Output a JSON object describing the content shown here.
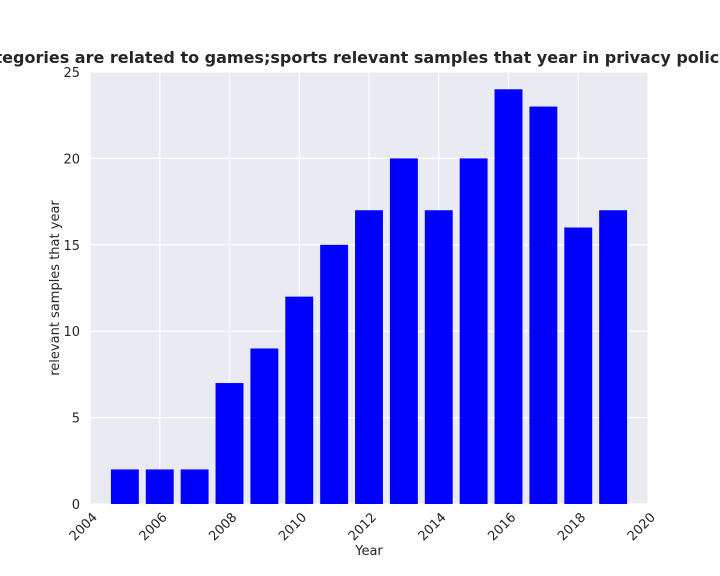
{
  "chart_data": {
    "type": "bar",
    "title": "when categories are related to games;sports relevant samples that year in privacy policies by Year",
    "xlabel": "Year",
    "ylabel": "relevant samples that year",
    "x": [
      2005,
      2006,
      2007,
      2008,
      2009,
      2010,
      2011,
      2012,
      2013,
      2014,
      2015,
      2016,
      2017,
      2018,
      2019
    ],
    "values": [
      2,
      2,
      2,
      7,
      9,
      12,
      15,
      17,
      20,
      17,
      20,
      24,
      23,
      16,
      17
    ],
    "xlim": [
      2004,
      2020
    ],
    "ylim": [
      0,
      25
    ],
    "xticks": [
      "2004",
      "2006",
      "2008",
      "2010",
      "2012",
      "2014",
      "2016",
      "2018",
      "2020"
    ],
    "yticks": [
      "0",
      "5",
      "10",
      "15",
      "20",
      "25"
    ],
    "bar_color": "#0000ff",
    "background_color": "#eaeaf2",
    "grid": true,
    "legend": "none"
  }
}
